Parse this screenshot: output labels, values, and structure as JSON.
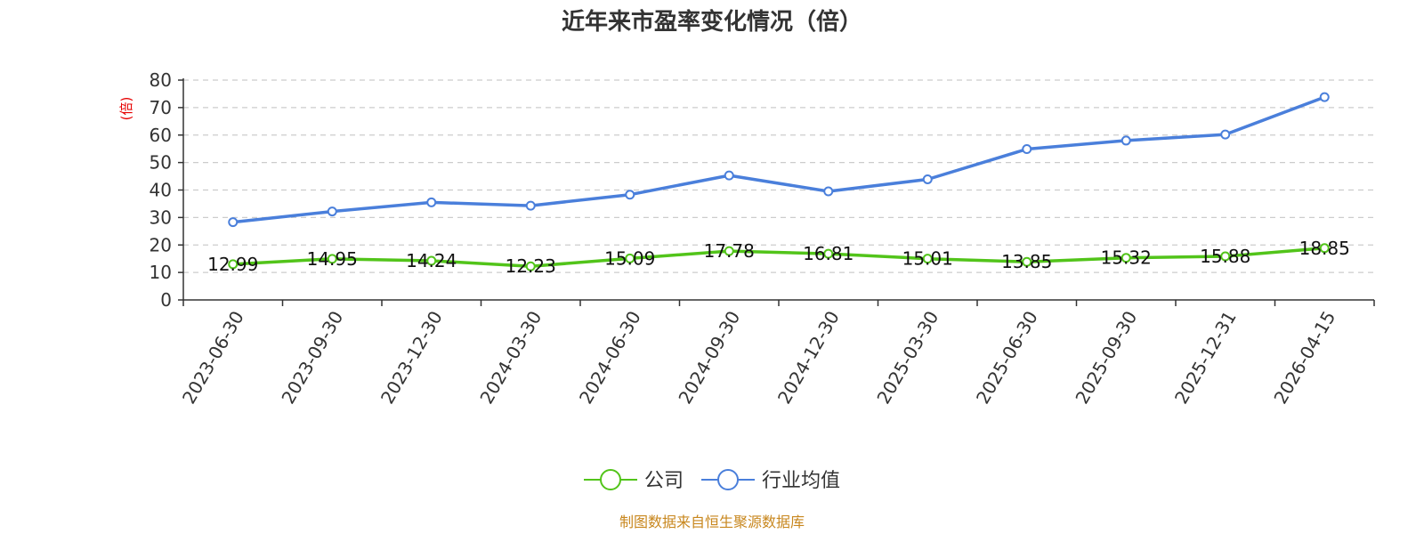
{
  "chart_data": {
    "type": "line",
    "title": "近年来市盈率变化情况（倍）",
    "ylabel": "(倍)",
    "xlabel": "",
    "ylim": [
      0,
      80
    ],
    "yticks": [
      0,
      10,
      20,
      30,
      40,
      50,
      60,
      70,
      80
    ],
    "grid": true,
    "legend_position": "bottom-center",
    "categories": [
      "2023-06-30",
      "2023-09-30",
      "2023-12-30",
      "2024-03-30",
      "2024-06-30",
      "2024-09-30",
      "2024-12-30",
      "2025-03-30",
      "2025-06-30",
      "2025-09-30",
      "2025-12-31",
      "2026-04-15"
    ],
    "series": [
      {
        "name": "公司",
        "color": "#52c41a",
        "show_labels": true,
        "values": [
          12.99,
          14.95,
          14.24,
          12.23,
          15.09,
          17.78,
          16.81,
          15.01,
          13.85,
          15.32,
          15.88,
          18.85
        ],
        "labels": [
          "12.99",
          "14.95",
          "14.24",
          "12.23",
          "15.09",
          "17.78",
          "16.81",
          "15.01",
          "13.85",
          "15.32",
          "15.88",
          "18.85"
        ]
      },
      {
        "name": "行业均值",
        "color": "#4a7fdb",
        "show_labels": false,
        "values": [
          28.3,
          32.2,
          35.5,
          34.3,
          38.3,
          45.3,
          39.5,
          43.9,
          54.9,
          58.0,
          60.2,
          73.8
        ]
      }
    ]
  },
  "colors": {
    "ylabel": "#e60000",
    "source": "#c8871e",
    "grid": "#cccccc",
    "axis": "#333333"
  },
  "source_text": "制图数据来自恒生聚源数据库"
}
